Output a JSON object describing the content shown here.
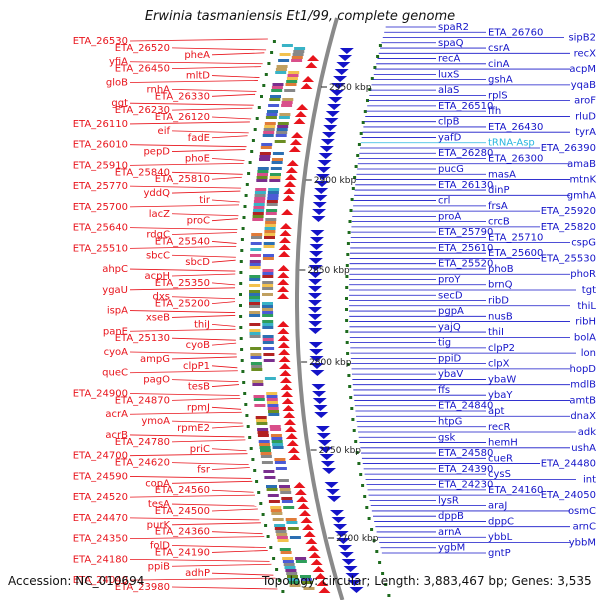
{
  "title": "Erwinia tasmaniensis Et1/99, complete genome",
  "footer": {
    "accession": "Accession: NC_010694",
    "summary": "Topology: circular; Length: 3,883,467 bp; Genes: 3,535"
  },
  "colors": {
    "left_strand": "#e8141c",
    "right_strand": "#1414c8",
    "trna": "#29b6e0",
    "ring": "#8a8a8a",
    "tick": "#1e6b1e"
  },
  "ruler_labels": [
    "2950 kbp",
    "2900 kbp",
    "2850 kbp",
    "2800 kbp",
    "2750 kbp",
    "2700 kbp"
  ],
  "left_labels": [
    "ETA_26530",
    "ETA_26520",
    "pheA",
    "yfiA",
    "ETA_26450",
    "mltD",
    "gloB",
    "rnhA",
    "ETA_26330",
    "ggt",
    "ETA_26230",
    "ETA_26120",
    "ETA_26110",
    "eif",
    "fadE",
    "ETA_26010",
    "pepD",
    "phoE",
    "ETA_25910",
    "ETA_25840",
    "ETA_25810",
    "ETA_25770",
    "yddQ",
    "tir",
    "ETA_25700",
    "lacZ",
    "proC",
    "ETA_25640",
    "rdgC",
    "ETA_25540",
    "ETA_25510",
    "sbcC",
    "sbcD",
    "ahpC",
    "acpH",
    "ETA_25350",
    "ygaU",
    "dxs",
    "ETA_25200",
    "ispA",
    "xseB",
    "thiJ",
    "panE",
    "ETA_25130",
    "cyoB",
    "cyoA",
    "ampG",
    "clpP1",
    "queC",
    "pagO",
    "tesB",
    "ETA_24900",
    "ETA_24870",
    "rpmJ",
    "acrA",
    "ymoA",
    "rpmE2",
    "acrB",
    "ETA_24780",
    "priC",
    "ETA_24700",
    "ETA_24620",
    "fsr",
    "ETA_24590",
    "copA",
    "ETA_24560",
    "ETA_24520",
    "tesA",
    "ETA_24500",
    "ETA_24470",
    "purK",
    "ETA_24360",
    "ETA_24350",
    "folD",
    "ETA_24190",
    "ETA_24180",
    "ppiB",
    "adhP",
    "ETA_24040",
    "ETA_23980"
  ],
  "right_labels": [
    "spaR2",
    "ETA_26760",
    "sipB2",
    "spaQ",
    "csrA",
    "recX",
    "recA",
    "cinA",
    "acpM",
    "luxS",
    "gshA",
    "yqaB",
    "alaS",
    "rplS",
    "aroF",
    "ETA_26510",
    "ffh",
    "rluD",
    "clpB",
    "ETA_26430",
    "tyrA",
    "yafD",
    "tRNA-Asp",
    "ETA_26390",
    "ETA_26280",
    "ETA_26300",
    "amaB",
    "pucG",
    "masA",
    "mtnK",
    "ETA_26130",
    "dinP",
    "gmhA",
    "crl",
    "frsA",
    "ETA_25920",
    "proA",
    "crcB",
    "ETA_25820",
    "ETA_25790",
    "ETA_25710",
    "cspG",
    "ETA_25610",
    "ETA_25600",
    "ETA_25530",
    "ETA_25520",
    "phoB",
    "phoR",
    "proY",
    "brnQ",
    "tgt",
    "secD",
    "ribD",
    "thiL",
    "pgpA",
    "nusB",
    "ribH",
    "yajQ",
    "thiI",
    "bolA",
    "tig",
    "clpP2",
    "lon",
    "ppiD",
    "clpX",
    "hopD",
    "ybaV",
    "ybaW",
    "mdlB",
    "ffs",
    "ybaY",
    "amtB",
    "ETA_24840",
    "apt",
    "dnaX",
    "htpG",
    "recR",
    "adk",
    "gsk",
    "hemH",
    "ushA",
    "ETA_24580",
    "cueR",
    "ETA_24480",
    "ETA_24390",
    "cysS",
    "int",
    "ETA_24230",
    "ETA_24160",
    "ETA_24050",
    "lysR",
    "araJ",
    "osmC",
    "dppB",
    "dppC",
    "arnC",
    "arnA",
    "ybbL",
    "ybbM",
    "ygbM",
    "gntP"
  ]
}
